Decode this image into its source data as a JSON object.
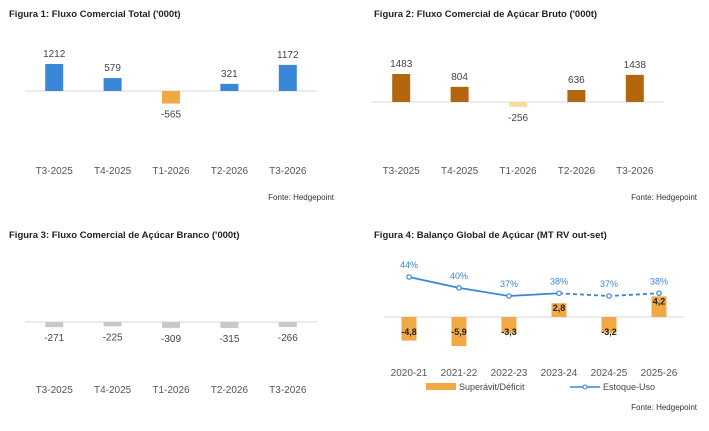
{
  "charts": [
    {
      "title": "Figura 1: Fluxo Comercial Total ('000t)",
      "source": "Fonte: Hedgepoint"
    },
    {
      "title": "Figura 2: Fluxo Comercial de Açúcar Bruto ('000t)",
      "source": "Fonte: Hedgepoint"
    },
    {
      "title": "Figura 3: Fluxo Comercial de Açúcar Branco ('000t)",
      "source": ""
    },
    {
      "title": "Figura 4: Balanço Global de Açúcar (MT RV out-set)",
      "source": "Fonte: Hedgepoint"
    }
  ],
  "chart_data": [
    {
      "type": "bar",
      "title": "Figura 1: Fluxo Comercial Total ('000t)",
      "categories": [
        "T3-2025",
        "T4-2025",
        "T1-2026",
        "T2-2026",
        "T3-2026"
      ],
      "values": [
        1212,
        579,
        -565,
        321,
        1172
      ],
      "labels": [
        "1212",
        "579",
        "-565",
        "321",
        "1172"
      ],
      "colors": [
        "#3a86d9",
        "#3a86d9",
        "#f0a945",
        "#3a86d9",
        "#3a86d9"
      ],
      "grid": false
    },
    {
      "type": "bar",
      "title": "Figura 2: Fluxo Comercial de Açúcar Bruto ('000t)",
      "categories": [
        "T3-2025",
        "T4-2025",
        "T1-2026",
        "T2-2026",
        "T3-2026"
      ],
      "values": [
        1483,
        804,
        -256,
        636,
        1438
      ],
      "labels": [
        "1483",
        "804",
        "-256",
        "636",
        "1438"
      ],
      "colors": [
        "#b3660e",
        "#b3660e",
        "#fbd9a3",
        "#b3660e",
        "#b3660e"
      ],
      "grid": false
    },
    {
      "type": "bar",
      "title": "Figura 3: Fluxo Comercial de Açúcar Branco ('000t)",
      "categories": [
        "T3-2025",
        "T4-2025",
        "T1-2026",
        "T2-2026",
        "T3-2026"
      ],
      "values": [
        -271,
        -225,
        -309,
        -315,
        -266
      ],
      "labels": [
        "-271",
        "-225",
        "-309",
        "-315",
        "-266"
      ],
      "colors": [
        "#c8c8c8",
        "#c8c8c8",
        "#c8c8c8",
        "#c8c8c8",
        "#c8c8c8"
      ],
      "grid": false
    },
    {
      "type": "bar",
      "title": "Figura 4: Balanço Global de Açúcar (MT RV out-set)",
      "categories": [
        "2020-21",
        "2021-22",
        "2022-23",
        "2023-24",
        "2024-25",
        "2025-26"
      ],
      "series": [
        {
          "name": "Superávit/Déficit",
          "type": "bar",
          "values": [
            -4.8,
            -5.9,
            -3.3,
            2.8,
            -3.2,
            4.2
          ],
          "labels": [
            "-4,8",
            "-5,9",
            "-3,3",
            "2,8",
            "-3,2",
            "4,2"
          ],
          "color": "#f0a945"
        },
        {
          "name": "Estoque-Uso",
          "type": "line",
          "values": [
            44,
            40,
            37,
            38,
            37,
            38
          ],
          "labels": [
            "44%",
            "40%",
            "37%",
            "38%",
            "37%",
            "38%"
          ],
          "color": "#3a86d9",
          "dashed_from": "2023-24"
        }
      ],
      "legend": "bottom",
      "grid": false
    }
  ]
}
